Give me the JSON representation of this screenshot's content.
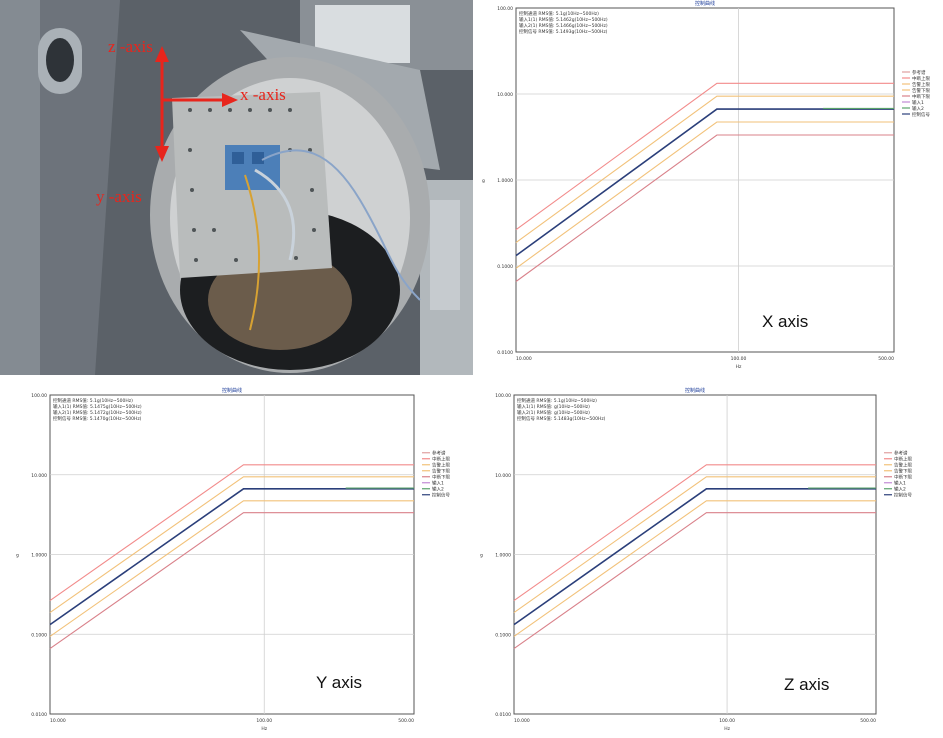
{
  "photo": {
    "labels": {
      "z": "z -axis",
      "x": "x -axis",
      "y": "y -axis"
    },
    "colors": {
      "arrow": "#e8251c"
    }
  },
  "chart_data": [
    {
      "type": "line",
      "title": "控制曲线",
      "caption": "X axis",
      "xscale": "log",
      "yscale": "log",
      "xlim": [
        10,
        500
      ],
      "ylim": [
        0.01,
        100
      ],
      "xticks": [
        "10.000",
        "100.00",
        "500.00"
      ],
      "yticks": [
        "100.00",
        "10.000",
        "1.0000",
        "0.1000",
        "0.0100"
      ],
      "ylabel": "g",
      "xlabel": "Hz",
      "grid": true,
      "legend_position": "right",
      "info": [
        "控制通道 RMS值: 5.1g(10Hz~500Hz)",
        "输入1(1) RMS值: 5.1462g(10Hz~500Hz)",
        "输入2(1) RMS值: 5.1466g(10Hz~500Hz)",
        "控制信号 RMS值: 5.1493g(10Hz~500Hz)"
      ],
      "legend": [
        "参考谱",
        "中断上限",
        "告警上限",
        "告警下限",
        "中断下限",
        "输入1",
        "输入2",
        "控制信号"
      ],
      "series": [
        {
          "name": "中断上限",
          "color": "#f28b8b",
          "x": [
            10,
            80,
            500
          ],
          "y": [
            0.264,
            13.33,
            13.33
          ]
        },
        {
          "name": "告警上限",
          "color": "#f2c27a",
          "x": [
            10,
            80,
            500
          ],
          "y": [
            0.187,
            9.43,
            9.43
          ]
        },
        {
          "name": "参考谱",
          "color": "#b7c7d6",
          "x": [
            10,
            80,
            500
          ],
          "y": [
            0.132,
            6.67,
            6.67
          ]
        },
        {
          "name": "控制信号",
          "color": "#2b3f7a",
          "x": [
            10,
            80,
            240,
            500
          ],
          "y": [
            0.132,
            6.67,
            6.67,
            6.67
          ]
        },
        {
          "name": "输入2",
          "color": "#5aa36b",
          "x": [
            240,
            500
          ],
          "y": [
            6.8,
            6.8
          ]
        },
        {
          "name": "告警下限",
          "color": "#f2c27a",
          "x": [
            10,
            80,
            500
          ],
          "y": [
            0.094,
            4.72,
            4.72
          ]
        },
        {
          "name": "中断下限",
          "color": "#d9818a",
          "x": [
            10,
            80,
            500
          ],
          "y": [
            0.066,
            3.34,
            3.34
          ]
        }
      ]
    },
    {
      "type": "line",
      "title": "控制曲线",
      "caption": "Y axis",
      "xscale": "log",
      "yscale": "log",
      "xlim": [
        10,
        500
      ],
      "ylim": [
        0.01,
        100
      ],
      "xticks": [
        "10.000",
        "100.00",
        "500.00"
      ],
      "yticks": [
        "100.00",
        "10.000",
        "1.0000",
        "0.1000",
        "0.0100"
      ],
      "ylabel": "g",
      "xlabel": "Hz",
      "grid": true,
      "legend_position": "right",
      "info": [
        "控制通道 RMS值: 5.1g(10Hz~500Hz)",
        "输入1(1) RMS值: 5.1475g(10Hz~500Hz)",
        "输入2(1) RMS值: 5.1472g(10Hz~500Hz)",
        "控制信号 RMS值: 5.1470g(10Hz~500Hz)"
      ],
      "legend": [
        "参考谱",
        "中断上限",
        "告警上限",
        "告警下限",
        "中断下限",
        "输入1",
        "输入2",
        "控制信号"
      ],
      "series": [
        {
          "name": "中断上限",
          "color": "#f28b8b",
          "x": [
            10,
            80,
            500
          ],
          "y": [
            0.264,
            13.33,
            13.33
          ]
        },
        {
          "name": "告警上限",
          "color": "#f2c27a",
          "x": [
            10,
            80,
            500
          ],
          "y": [
            0.187,
            9.43,
            9.43
          ]
        },
        {
          "name": "参考谱",
          "color": "#b7c7d6",
          "x": [
            10,
            80,
            500
          ],
          "y": [
            0.132,
            6.67,
            6.67
          ]
        },
        {
          "name": "控制信号",
          "color": "#2b3f7a",
          "x": [
            10,
            80,
            240,
            500
          ],
          "y": [
            0.132,
            6.67,
            6.67,
            6.67
          ]
        },
        {
          "name": "输入2",
          "color": "#5aa36b",
          "x": [
            240,
            500
          ],
          "y": [
            6.8,
            6.8
          ]
        },
        {
          "name": "告警下限",
          "color": "#f2c27a",
          "x": [
            10,
            80,
            500
          ],
          "y": [
            0.094,
            4.72,
            4.72
          ]
        },
        {
          "name": "中断下限",
          "color": "#d9818a",
          "x": [
            10,
            80,
            500
          ],
          "y": [
            0.066,
            3.34,
            3.34
          ]
        }
      ]
    },
    {
      "type": "line",
      "title": "控制曲线",
      "caption": "Z axis",
      "xscale": "log",
      "yscale": "log",
      "xlim": [
        10,
        500
      ],
      "ylim": [
        0.01,
        100
      ],
      "xticks": [
        "10.000",
        "100.00",
        "500.00"
      ],
      "yticks": [
        "100.00",
        "10.000",
        "1.0000",
        "0.1000",
        "0.0100"
      ],
      "ylabel": "g",
      "xlabel": "Hz",
      "grid": true,
      "legend_position": "right",
      "info": [
        "控制通道 RMS值: 5.1g(10Hz~500Hz)",
        "输入1(1) RMS值: g(10Hz~500Hz)",
        "输入2(1) RMS值: g(10Hz~500Hz)",
        "控制信号 RMS值: 5.1483g(10Hz~500Hz)"
      ],
      "legend": [
        "参考谱",
        "中断上限",
        "告警上限",
        "告警下限",
        "中断下限",
        "输入1",
        "输入2",
        "控制信号"
      ],
      "series": [
        {
          "name": "中断上限",
          "color": "#f28b8b",
          "x": [
            10,
            80,
            500
          ],
          "y": [
            0.264,
            13.33,
            13.33
          ]
        },
        {
          "name": "告警上限",
          "color": "#f2c27a",
          "x": [
            10,
            80,
            500
          ],
          "y": [
            0.187,
            9.43,
            9.43
          ]
        },
        {
          "name": "参考谱",
          "color": "#b7c7d6",
          "x": [
            10,
            80,
            500
          ],
          "y": [
            0.132,
            6.67,
            6.67
          ]
        },
        {
          "name": "控制信号",
          "color": "#2b3f7a",
          "x": [
            10,
            80,
            240,
            500
          ],
          "y": [
            0.132,
            6.67,
            6.67,
            6.67
          ]
        },
        {
          "name": "输入2",
          "color": "#5aa36b",
          "x": [
            240,
            500
          ],
          "y": [
            6.8,
            6.8
          ]
        },
        {
          "name": "告警下限",
          "color": "#f2c27a",
          "x": [
            10,
            80,
            500
          ],
          "y": [
            0.094,
            4.72,
            4.72
          ]
        },
        {
          "name": "中断下限",
          "color": "#d9818a",
          "x": [
            10,
            80,
            500
          ],
          "y": [
            0.066,
            3.34,
            3.34
          ]
        }
      ]
    }
  ]
}
